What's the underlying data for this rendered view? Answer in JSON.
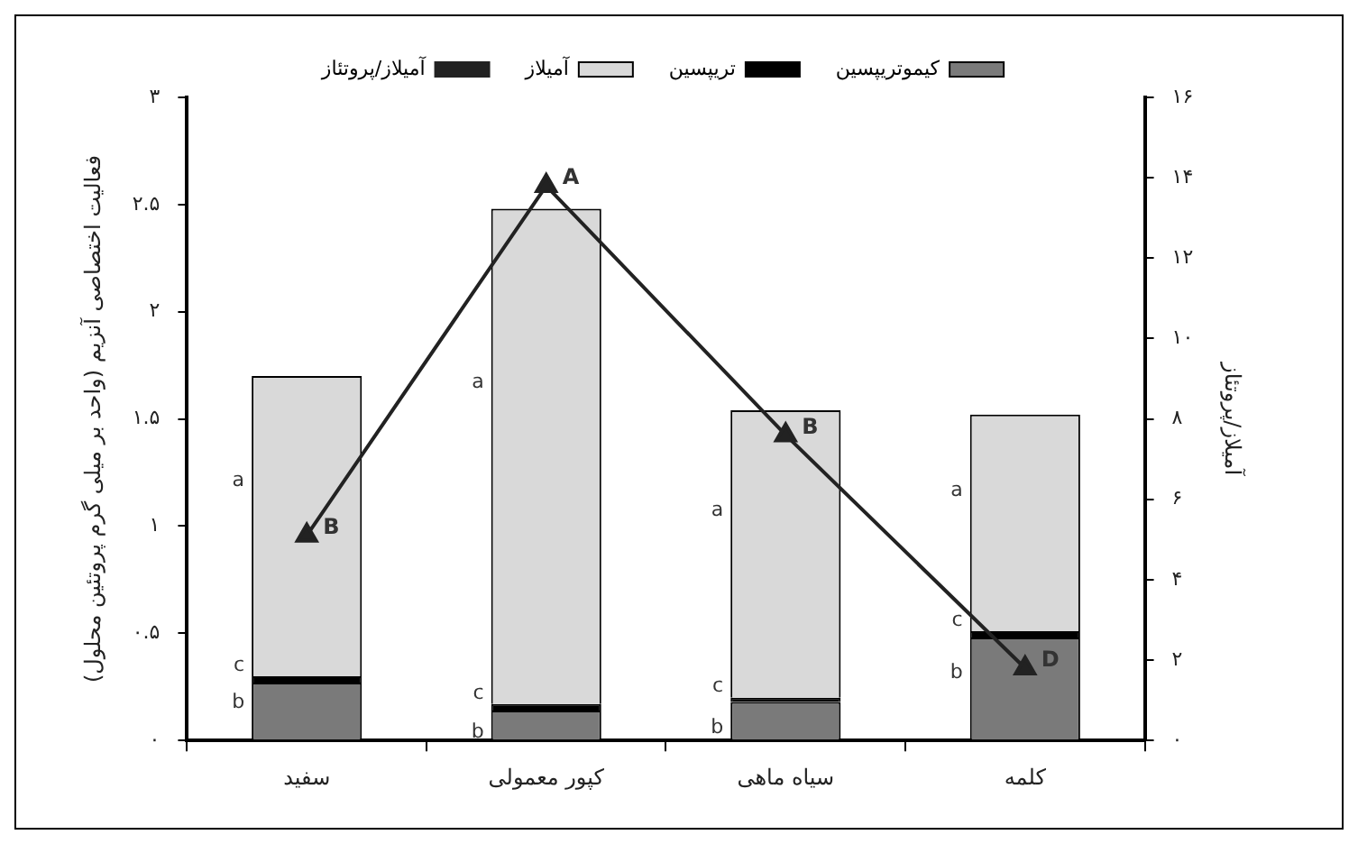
{
  "chart_data": {
    "type": "bar",
    "stacked": true,
    "categories": [
      "سفید",
      "کپور معمولی",
      "سیاه ماهی",
      "کلمه"
    ],
    "ylabel": "فعالیت اختصاصی آنزیم (واحد بر میلی گرم پروتئین محلول)",
    "y2label": "آمیلاز/پروتئاز",
    "ylim": [
      0,
      3
    ],
    "yticks": [
      {
        "value": 0,
        "label": "۰"
      },
      {
        "value": 0.5,
        "label": "۰.۵"
      },
      {
        "value": 1,
        "label": "۱"
      },
      {
        "value": 1.5,
        "label": "۱.۵"
      },
      {
        "value": 2,
        "label": "۲"
      },
      {
        "value": 2.5,
        "label": "۲.۵"
      },
      {
        "value": 3,
        "label": "۳"
      }
    ],
    "y2lim": [
      0,
      16
    ],
    "y2ticks": [
      {
        "value": 0,
        "label": "۰"
      },
      {
        "value": 2,
        "label": "۲"
      },
      {
        "value": 4,
        "label": "۴"
      },
      {
        "value": 6,
        "label": "۶"
      },
      {
        "value": 8,
        "label": "۸"
      },
      {
        "value": 10,
        "label": "۱۰"
      },
      {
        "value": 12,
        "label": "۱۲"
      },
      {
        "value": 14,
        "label": "۱۴"
      },
      {
        "value": 16,
        "label": "۱۶"
      }
    ],
    "legend": "top",
    "marker": "triangle",
    "series": [
      {
        "name": "کیموتریپسین",
        "color": "#7a7a7a",
        "values": [
          0.27,
          0.14,
          0.18,
          0.48
        ],
        "value_labels": [
          "b",
          "b",
          "b",
          "b"
        ]
      },
      {
        "name": "تریپسین",
        "color": "#000000",
        "values": [
          0.03,
          0.03,
          0.02,
          0.03
        ],
        "value_labels": [
          "c",
          "c",
          "c",
          "c"
        ]
      },
      {
        "name": "آمیلاز",
        "color": "#d9d9d9",
        "values": [
          1.4,
          2.31,
          1.34,
          1.01
        ],
        "value_labels": [
          "a",
          "a",
          "a",
          "a"
        ]
      },
      {
        "name": "آمیلاز/پروتئاز",
        "type": "line",
        "axis": "y2",
        "color": "#222222",
        "values": [
          5.1,
          13.8,
          7.6,
          1.8
        ],
        "value_labels": [
          "B",
          "A",
          "B",
          "D"
        ]
      }
    ]
  }
}
